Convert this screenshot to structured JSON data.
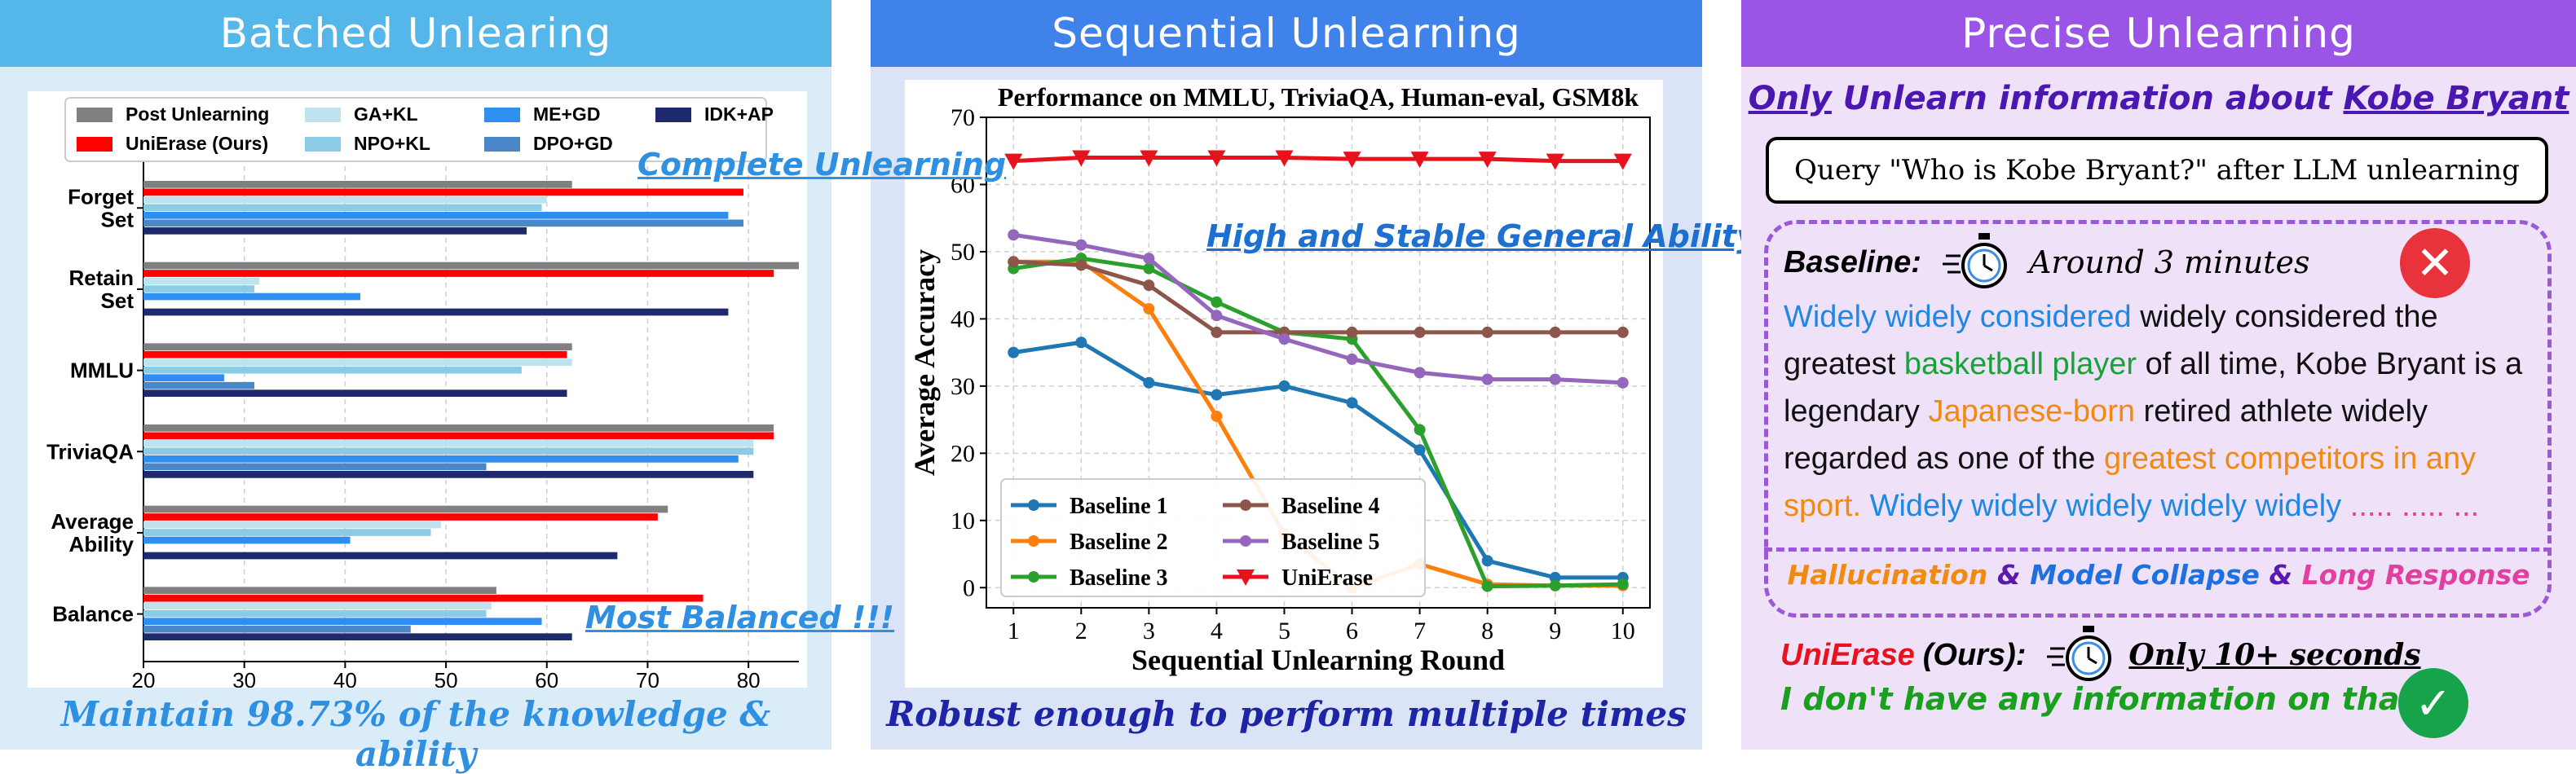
{
  "panels": {
    "batched": {
      "title": "Batched Unlearing",
      "caption": "Maintain 98.73% of the knowledge & ability",
      "annotation_top": "Complete Unlearning",
      "annotation_bottom": "Most Balanced !!!"
    },
    "sequential": {
      "title": "Sequential Unlearning",
      "caption": "Robust enough to perform multiple times",
      "annotation": "High and Stable General Ability !!!"
    },
    "precise": {
      "title": "Precise Unlearning",
      "headline_only": "Only",
      "headline_mid": " Unlearn information about ",
      "headline_name": "Kobe Bryant",
      "query": "Query \"Who is Kobe Bryant?\" after LLM unlearning",
      "baseline_label": "Baseline:",
      "baseline_time": "Around 3 minutes",
      "baseline_output": [
        {
          "text": "Widely widely considered",
          "color": "#1e88e5"
        },
        {
          "text": " widely considered the greatest ",
          "color": "#111111"
        },
        {
          "text": "basketball player",
          "color": "#18a33a"
        },
        {
          "text": " of all time, Kobe Bryant is a legendary ",
          "color": "#111111"
        },
        {
          "text": "Japanese-born",
          "color": "#f08a10"
        },
        {
          "text": " retired athlete widely regarded as one of the ",
          "color": "#111111"
        },
        {
          "text": "greatest competitors in any sport.",
          "color": "#f08a10"
        },
        {
          "text": " Widely widely widely widely widely",
          "color": "#1e88e5"
        },
        {
          "text": " ..... ..... ...",
          "color": "#e0409a"
        }
      ],
      "issues": [
        {
          "text": "Hallucination",
          "color": "#f08a10"
        },
        {
          "text": " & ",
          "color": "#5a1ab0"
        },
        {
          "text": "Model Collapse",
          "color": "#1e6fe0"
        },
        {
          "text": " & ",
          "color": "#5a1ab0"
        },
        {
          "text": "Long Response",
          "color": "#e040a0"
        }
      ],
      "ours_name": "UniErase",
      "ours_tag": "(Ours):",
      "ours_time": "Only 10+ seconds",
      "ours_answer": "I don't have any information on that.",
      "icons": {
        "fail": "x-mark-icon",
        "success": "check-icon",
        "timer": "stopwatch-icon"
      }
    }
  },
  "chart_data": [
    {
      "type": "bar",
      "orientation": "horizontal",
      "categories": [
        "Forget\nSet",
        "Retain\nSet",
        "MMLU",
        "TriviaQA",
        "Average\nAbility",
        "Balance"
      ],
      "xlim": [
        20,
        85
      ],
      "xticks": [
        20,
        30,
        40,
        50,
        60,
        70,
        80
      ],
      "grid": true,
      "legend_position": "top",
      "series": [
        {
          "name": "Post Unlearning",
          "color": "#808080",
          "values": [
            62.5,
            85.0,
            62.5,
            82.5,
            72.0,
            55.0
          ]
        },
        {
          "name": "UniErase (Ours)",
          "color": "#ff0000",
          "values": [
            79.5,
            82.5,
            62.0,
            82.5,
            71.0,
            75.5
          ]
        },
        {
          "name": "GA+KL",
          "color": "#bfe3ee",
          "values": [
            60.0,
            31.5,
            62.5,
            80.5,
            49.5,
            54.5
          ]
        },
        {
          "name": "NPO+KL",
          "color": "#8ccbe6",
          "values": [
            59.5,
            31.0,
            57.5,
            80.5,
            48.5,
            54.0
          ]
        },
        {
          "name": "ME+GD",
          "color": "#2f8ff0",
          "values": [
            78.0,
            41.5,
            28.0,
            79.0,
            40.5,
            59.5
          ]
        },
        {
          "name": "DPO+GD",
          "color": "#4a86c8",
          "values": [
            79.5,
            20.0,
            31.0,
            54.0,
            20.0,
            46.5
          ]
        },
        {
          "name": "IDK+AP",
          "color": "#1f2a6e",
          "values": [
            58.0,
            78.0,
            62.0,
            80.5,
            67.0,
            62.5
          ]
        }
      ]
    },
    {
      "type": "line",
      "title": "Performance on MMLU, TriviaQA, Human-eval, GSM8k",
      "xlabel": "Sequential Unlearning Round",
      "ylabel": "Average Accuracy",
      "x": [
        1,
        2,
        3,
        4,
        5,
        6,
        7,
        8,
        9,
        10
      ],
      "xlim": [
        0.6,
        10.4
      ],
      "ylim": [
        -3,
        70
      ],
      "yticks": [
        0,
        10,
        20,
        30,
        40,
        50,
        60,
        70
      ],
      "grid": true,
      "legend_position": "bottom-left",
      "series": [
        {
          "name": "Baseline 1",
          "color": "#1f77b4",
          "marker": "circle",
          "values": [
            35.0,
            36.5,
            30.5,
            28.7,
            30.0,
            27.5,
            20.5,
            4.0,
            1.5,
            1.5
          ]
        },
        {
          "name": "Baseline 2",
          "color": "#ff7f0e",
          "marker": "circle",
          "values": [
            48.5,
            48.5,
            41.5,
            25.5,
            8.0,
            0.0,
            3.5,
            0.5,
            0.3,
            0.3
          ]
        },
        {
          "name": "Baseline 3",
          "color": "#2ca02c",
          "marker": "circle",
          "values": [
            47.5,
            49.0,
            47.5,
            42.5,
            38.0,
            37.0,
            23.5,
            0.2,
            0.3,
            0.5
          ]
        },
        {
          "name": "Baseline 4",
          "color": "#8c564b",
          "marker": "circle",
          "values": [
            48.5,
            48.0,
            45.0,
            38.0,
            38.0,
            38.0,
            38.0,
            38.0,
            38.0,
            38.0
          ]
        },
        {
          "name": "Baseline 5",
          "color": "#9467bd",
          "marker": "circle",
          "values": [
            52.5,
            51.0,
            49.0,
            40.5,
            37.0,
            34.0,
            32.0,
            31.0,
            31.0,
            30.5
          ]
        },
        {
          "name": "UniErase",
          "color": "#e8121c",
          "marker": "triangle-down",
          "values": [
            63.5,
            64.0,
            64.0,
            64.0,
            64.0,
            63.8,
            63.8,
            63.8,
            63.5,
            63.5
          ]
        }
      ]
    }
  ]
}
